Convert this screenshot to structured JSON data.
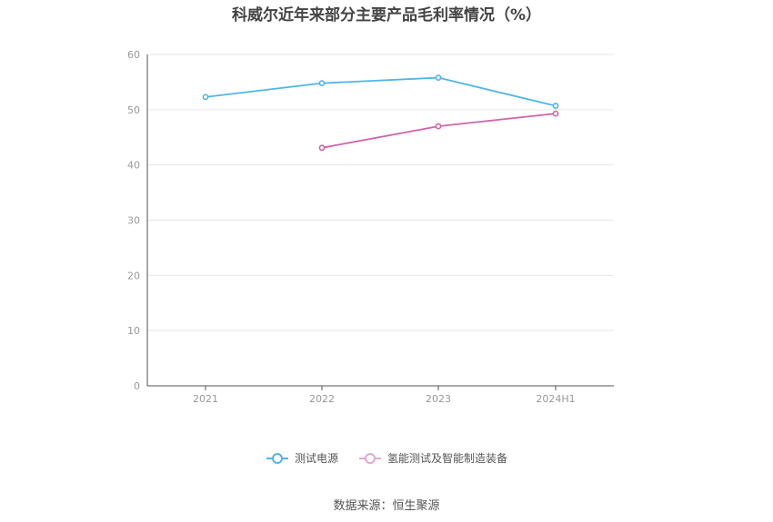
{
  "chart_data": {
    "type": "line",
    "title": "科威尔近年来部分主要产品毛利率情况（%）",
    "categories": [
      "2021",
      "2022",
      "2023",
      "2024H1"
    ],
    "ylim": [
      0,
      60
    ],
    "yticks": [
      0,
      10,
      20,
      30,
      40,
      50,
      60
    ],
    "grid": true,
    "legend_position": "bottom",
    "series": [
      {
        "name": "测试电源",
        "color": "#4db6ea",
        "values": [
          52.3,
          54.8,
          55.8,
          50.7
        ]
      },
      {
        "name": "氢能测试及智能制造装备",
        "color": "#d063ab",
        "values": [
          null,
          43.1,
          47.0,
          49.3
        ]
      }
    ]
  },
  "source": "数据来源：恒生聚源"
}
